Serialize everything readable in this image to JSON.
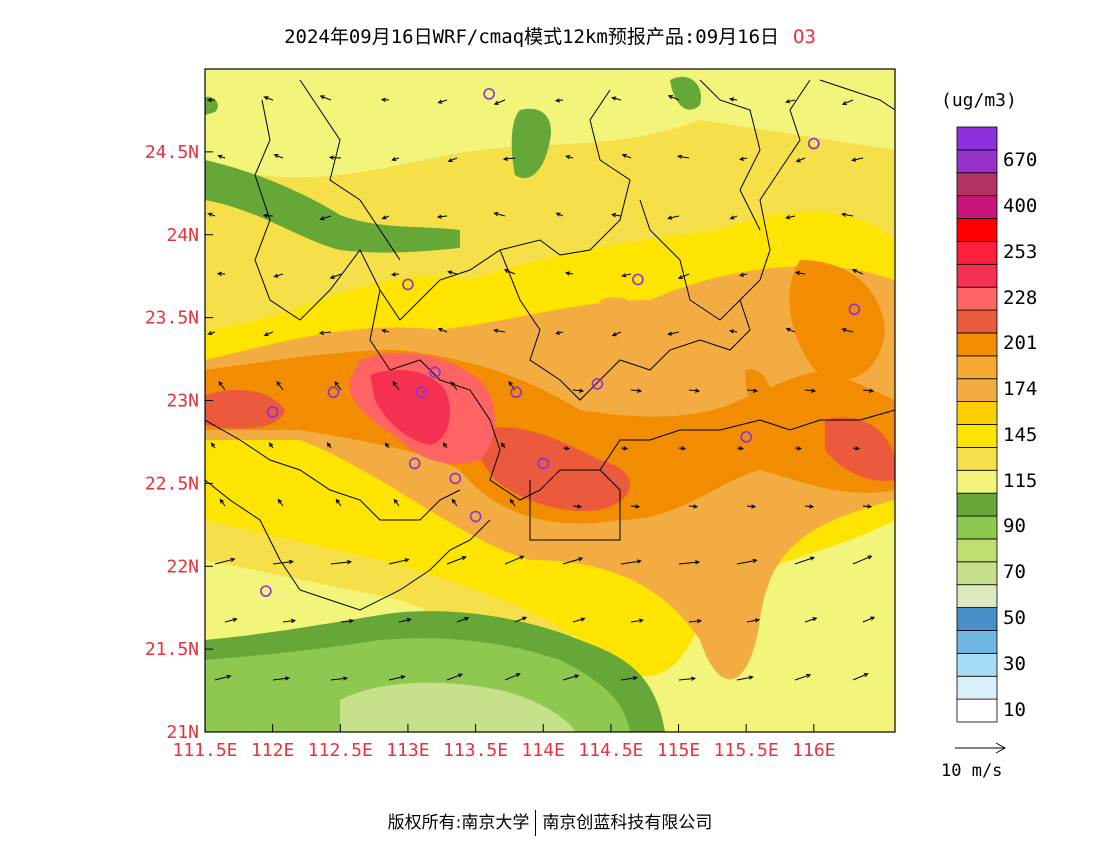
{
  "title": {
    "main": "2024年09月16日WRF/cmaq模式12km预报产品:09月16日",
    "species": "O3"
  },
  "map": {
    "lon_ticks": [
      "111.5E",
      "112E",
      "112.5E",
      "113E",
      "113.5E",
      "114E",
      "114.5E",
      "115E",
      "115.5E",
      "116E"
    ],
    "lat_ticks": [
      "24.5N",
      "24N",
      "23.5N",
      "23N",
      "22.5N",
      "22N",
      "21.5N",
      "21N"
    ],
    "lon_values": [
      111.5,
      112.0,
      112.5,
      113.0,
      113.5,
      114.0,
      114.5,
      115.0,
      115.5,
      116.0
    ],
    "lat_values": [
      24.5,
      24.0,
      23.5,
      23.0,
      22.5,
      22.0,
      21.5,
      21.0
    ],
    "extent": {
      "lon_min": 111.5,
      "lon_max": 116.6,
      "lat_min": 21.0,
      "lat_max": 25.0
    },
    "stations": [
      {
        "lon": 113.6,
        "lat": 24.85
      },
      {
        "lon": 116.0,
        "lat": 24.55
      },
      {
        "lon": 113.0,
        "lat": 23.7
      },
      {
        "lon": 114.7,
        "lat": 23.73
      },
      {
        "lon": 116.3,
        "lat": 23.55
      },
      {
        "lon": 113.2,
        "lat": 23.17
      },
      {
        "lon": 112.45,
        "lat": 23.05
      },
      {
        "lon": 113.1,
        "lat": 23.05
      },
      {
        "lon": 113.8,
        "lat": 23.05
      },
      {
        "lon": 114.4,
        "lat": 23.1
      },
      {
        "lon": 112.0,
        "lat": 22.93
      },
      {
        "lon": 115.5,
        "lat": 22.78
      },
      {
        "lon": 113.05,
        "lat": 22.62
      },
      {
        "lon": 114.0,
        "lat": 22.62
      },
      {
        "lon": 113.35,
        "lat": 22.53
      },
      {
        "lon": 113.5,
        "lat": 22.3
      },
      {
        "lon": 111.95,
        "lat": 21.85
      }
    ],
    "hotspots": [
      {
        "lon": 113.0,
        "lat": 22.95,
        "level": "228-253"
      },
      {
        "lon": 113.75,
        "lat": 22.55,
        "level": "201-228"
      },
      {
        "lon": 114.2,
        "lat": 22.45,
        "level": "201-228"
      },
      {
        "lon": 116.3,
        "lat": 22.7,
        "level": "201-228"
      },
      {
        "lon": 111.8,
        "lat": 22.9,
        "level": "201-228"
      }
    ]
  },
  "colorbar": {
    "unit": "(ug/m3)",
    "levels": [
      {
        "color": "#ffffff",
        "label": "10"
      },
      {
        "color": "#d9effa",
        "label": ""
      },
      {
        "color": "#a6dcf5",
        "label": "30"
      },
      {
        "color": "#6fb6e4",
        "label": ""
      },
      {
        "color": "#4a90c8",
        "label": "50"
      },
      {
        "color": "#dce8c0",
        "label": ""
      },
      {
        "color": "#c7e08a",
        "label": "70"
      },
      {
        "color": "#bede70",
        "label": ""
      },
      {
        "color": "#8fc850",
        "label": "90"
      },
      {
        "color": "#66a838",
        "label": ""
      },
      {
        "color": "#f2f57a",
        "label": "115"
      },
      {
        "color": "#f5e04a",
        "label": ""
      },
      {
        "color": "#ffe400",
        "label": "145"
      },
      {
        "color": "#fcd000",
        "label": ""
      },
      {
        "color": "#f3ac42",
        "label": "174"
      },
      {
        "color": "#f5a832",
        "label": ""
      },
      {
        "color": "#f28c00",
        "label": "201"
      },
      {
        "color": "#eb5a3c",
        "label": ""
      },
      {
        "color": "#ff6464",
        "label": "228"
      },
      {
        "color": "#f53050",
        "label": ""
      },
      {
        "color": "#ff1e3c",
        "label": "253"
      },
      {
        "color": "#ff0000",
        "label": ""
      },
      {
        "color": "#c8147a",
        "label": "400"
      },
      {
        "color": "#b43264",
        "label": ""
      },
      {
        "color": "#9632c8",
        "label": "670"
      },
      {
        "color": "#8c32dc",
        "label": ""
      }
    ]
  },
  "wind_reference": {
    "label": "10 m/s"
  },
  "footer": {
    "left": "版权所有:南京大学",
    "right": "南京创蓝科技有限公司"
  }
}
